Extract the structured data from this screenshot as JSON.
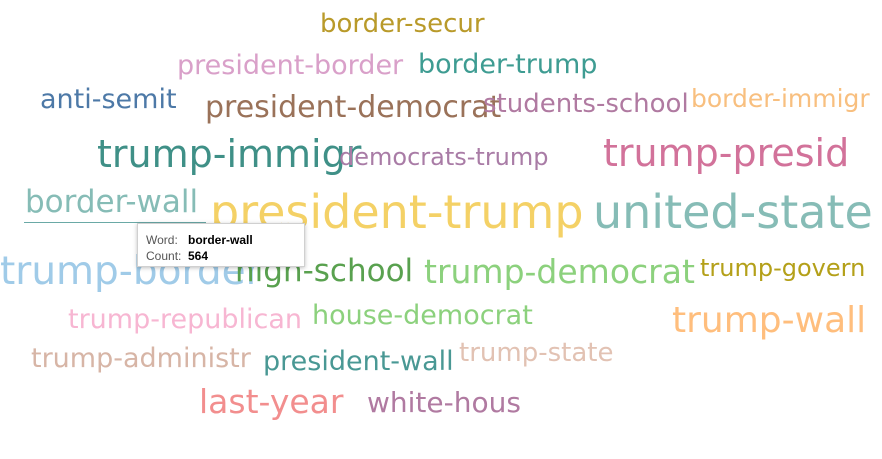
{
  "words": [
    {
      "text": "border-secur",
      "color": "#b99a2a"
    },
    {
      "text": "president-border",
      "color": "#d9a0c9"
    },
    {
      "text": "border-trump",
      "color": "#3e9c92"
    },
    {
      "text": "anti-semit",
      "color": "#4d79a7"
    },
    {
      "text": "president-democrat",
      "color": "#9a7259"
    },
    {
      "text": "students-school",
      "color": "#b07aa1"
    },
    {
      "text": "border-immigr",
      "color": "#f8bf7f"
    },
    {
      "text": "trump-immigr",
      "color": "#3f9087"
    },
    {
      "text": "democrats-trump",
      "color": "#a97ca6"
    },
    {
      "text": "trump-presid",
      "color": "#d2729a"
    },
    {
      "text": "border-wall",
      "color": "#86bcb6"
    },
    {
      "text": "president-trump",
      "color": "#f4d166"
    },
    {
      "text": "united-state",
      "color": "#86bcb6"
    },
    {
      "text": "trump-border",
      "color": "#a0cbe8"
    },
    {
      "text": "high-school",
      "color": "#59a14f"
    },
    {
      "text": "trump-democrat",
      "color": "#8cd17d"
    },
    {
      "text": "trump-govern",
      "color": "#b4a019"
    },
    {
      "text": "trump-republican",
      "color": "#f7b6d2"
    },
    {
      "text": "house-democrat",
      "color": "#8cd17d"
    },
    {
      "text": "trump-wall",
      "color": "#ffbe7d"
    },
    {
      "text": "trump-administr",
      "color": "#d7b5a6"
    },
    {
      "text": "president-wall",
      "color": "#499894"
    },
    {
      "text": "trump-state",
      "color": "#e2c2b3"
    },
    {
      "text": "last-year",
      "color": "#f28e8e"
    },
    {
      "text": "white-hous",
      "color": "#b07aa1"
    }
  ],
  "tooltip": {
    "word_label": "Word:",
    "word_value": "border-wall",
    "count_label": "Count:",
    "count_value": "564"
  }
}
